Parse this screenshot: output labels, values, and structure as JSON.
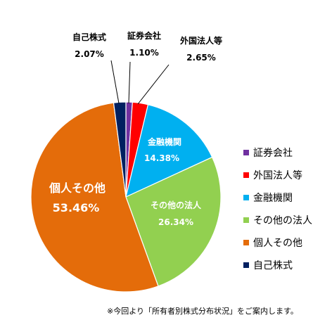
{
  "chart_data": {
    "type": "pie",
    "slices": [
      {
        "name": "証券会社",
        "value": 1.1,
        "label": "1.10%",
        "color": "#7030a0"
      },
      {
        "name": "外国法人等",
        "value": 2.65,
        "label": "2.65%",
        "color": "#ff0000"
      },
      {
        "name": "金融機関",
        "value": 14.38,
        "label": "14.38%",
        "color": "#00b0f0"
      },
      {
        "name": "その他の法人",
        "value": 26.34,
        "label": "26.34%",
        "color": "#92d050"
      },
      {
        "name": "個人その他",
        "value": 53.46,
        "label": "53.46%",
        "color": "#e46c0a"
      },
      {
        "name": "自己株式",
        "value": 2.07,
        "label": "2.07%",
        "color": "#002060"
      }
    ],
    "legend": [
      "証券会社",
      "外国法人等",
      "金融機関",
      "その他の法人",
      "個人その他",
      "自己株式"
    ],
    "legend_position": "right",
    "note": "※今回より「所有者別株式分布状況」をご案内します。"
  }
}
